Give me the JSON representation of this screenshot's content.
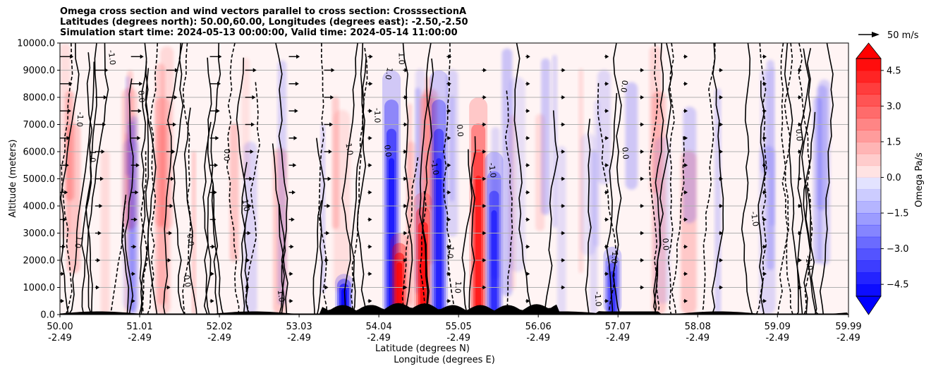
{
  "chart_data": {
    "type": "heatmap",
    "title_lines": [
      "Omega cross section and wind vectors parallel to cross section: CrosssectionA",
      "Latitudes (degrees north): 50.00,60.00, Longitudes (degrees east): -2.50,-2.50",
      "Simulation start time: 2024-05-13 00:00:00, Valid time: 2024-05-14 11:00:00"
    ],
    "ylabel": "Altitude (meters)",
    "xlabel_lines": [
      "Latitude (degrees N)",
      "Longitude (degrees E)"
    ],
    "ylim": [
      0,
      10000
    ],
    "y_ticks": [
      0,
      1000,
      2000,
      3000,
      4000,
      5000,
      6000,
      7000,
      8000,
      9000,
      10000
    ],
    "y_tick_labels": [
      "0.0",
      "1000.0",
      "2000.0",
      "3000.0",
      "4000.0",
      "5000.0",
      "6000.0",
      "7000.0",
      "8000.0",
      "9000.0",
      "10000.0"
    ],
    "x_range": [
      50.0,
      59.99
    ],
    "x_ticks": [
      {
        "lat": "50.00",
        "lon": "-2.49"
      },
      {
        "lat": "51.01",
        "lon": "-2.49"
      },
      {
        "lat": "52.02",
        "lon": "-2.49"
      },
      {
        "lat": "53.03",
        "lon": "-2.49"
      },
      {
        "lat": "54.04",
        "lon": "-2.49"
      },
      {
        "lat": "55.05",
        "lon": "-2.49"
      },
      {
        "lat": "56.06",
        "lon": "-2.49"
      },
      {
        "lat": "57.07",
        "lon": "-2.49"
      },
      {
        "lat": "58.08",
        "lon": "-2.49"
      },
      {
        "lat": "59.09",
        "lon": "-2.49"
      },
      {
        "lat": "59.99",
        "lon": "-2.49"
      }
    ],
    "grid": "horizontal",
    "colorbar": {
      "label": "Omega Pa/s",
      "range": [
        -5.0,
        5.0
      ],
      "extend": "both",
      "ticks": [
        4.5,
        3.0,
        1.5,
        0.0,
        -1.5,
        -3.0,
        -4.5
      ],
      "tick_labels": [
        "4.5",
        "3.0",
        "1.5",
        "0.0",
        "−1.5",
        "−3.0",
        "−4.5"
      ],
      "positive_color": "#ff0000",
      "negative_color": "#0000ff"
    },
    "contour_labels": [
      "0.0",
      "1.0",
      "-1.0"
    ],
    "vector_key": {
      "label": "50 m/s",
      "value": 50
    },
    "features": [
      {
        "lat": 54.2,
        "sign": "negative",
        "peak": -3.5,
        "z_top": 9000
      },
      {
        "lat": 54.3,
        "sign": "positive",
        "peak": 4.5,
        "z_top": 3000
      },
      {
        "lat": 54.6,
        "sign": "positive",
        "peak": 4.5,
        "z_top": 4500
      },
      {
        "lat": 54.8,
        "sign": "negative",
        "peak": -3.0,
        "z_top": 9000
      },
      {
        "lat": 55.3,
        "sign": "positive",
        "peak": 3.5,
        "z_top": 8000
      },
      {
        "lat": 55.5,
        "sign": "negative",
        "peak": -2.5,
        "z_top": 6000
      },
      {
        "lat": 53.6,
        "sign": "negative",
        "peak": -5.0,
        "z_top": 1500
      },
      {
        "lat": 57.0,
        "sign": "negative",
        "peak": -2.0,
        "z_top": 2500
      }
    ]
  }
}
